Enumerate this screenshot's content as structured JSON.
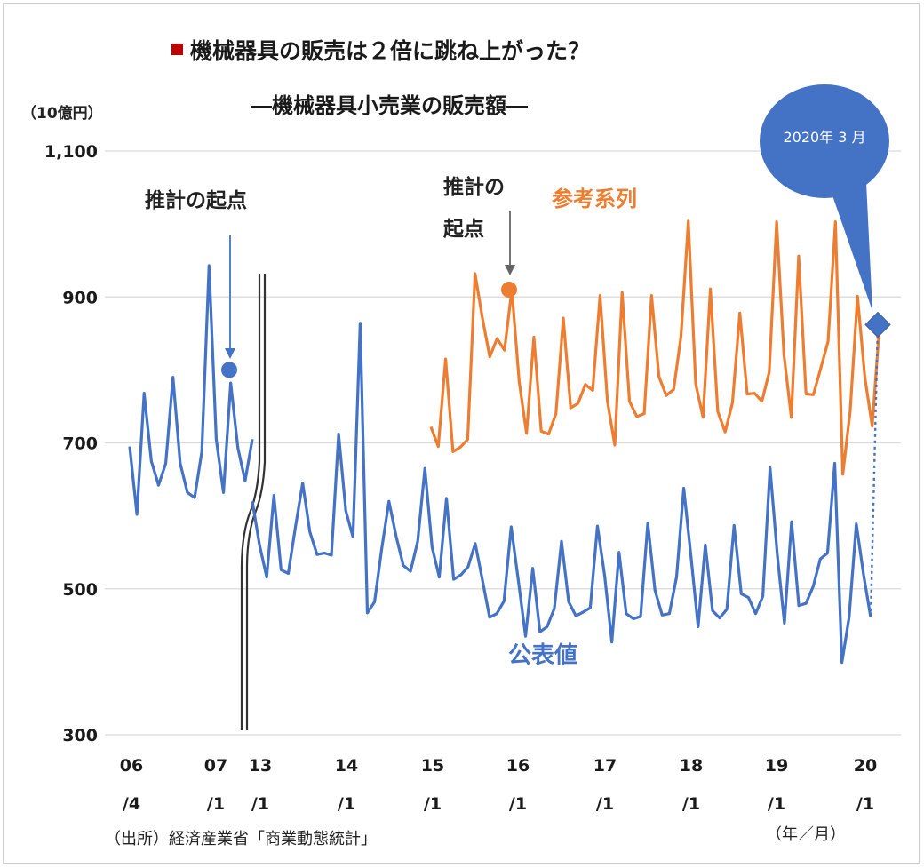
{
  "chart_data": {
    "type": "line",
    "title": "機械器具の販売は２倍に跳ね上がった？",
    "subtitle": "―機械器具小売業の販売額―",
    "ylabel": "（10億円）",
    "ylim": [
      300,
      1100
    ],
    "yticks": [
      300,
      500,
      700,
      900,
      1100
    ],
    "ytick_labels": [
      "300",
      "500",
      "700",
      "900",
      "1,100"
    ],
    "xtick_labels": [
      {
        "top": "06",
        "bottom": "/4"
      },
      {
        "top": "07",
        "bottom": "/1"
      },
      {
        "top": "13",
        "bottom": "/1"
      },
      {
        "top": "14",
        "bottom": "/1"
      },
      {
        "top": "15",
        "bottom": "/1"
      },
      {
        "top": "16",
        "bottom": "/1"
      },
      {
        "top": "17",
        "bottom": "/1"
      },
      {
        "top": "18",
        "bottom": "/1"
      },
      {
        "top": "19",
        "bottom": "/1"
      },
      {
        "top": "20",
        "bottom": "/1"
      }
    ],
    "xunit": "（年／月）",
    "grid": true,
    "series": [
      {
        "name": "公表値",
        "color": "#4472C4",
        "segment_2006_2007": [
          695,
          602,
          768,
          675,
          642,
          672,
          790,
          672,
          632,
          625,
          688,
          943,
          705,
          632,
          782,
          693,
          648,
          705
        ],
        "segment_2012_2020": [
          620,
          560,
          516,
          628,
          526,
          521,
          585,
          645,
          578,
          547,
          549,
          546,
          712,
          607,
          571,
          864,
          467,
          482,
          555,
          620,
          572,
          532,
          524,
          565,
          665,
          557,
          516,
          624,
          513,
          519,
          530,
          562,
          512,
          461,
          466,
          483,
          585,
          511,
          435,
          528,
          441,
          448,
          473,
          565,
          482,
          463,
          468,
          474,
          586,
          518,
          427,
          550,
          466,
          459,
          462,
          590,
          498,
          464,
          466,
          516,
          638,
          545,
          448,
          560,
          470,
          460,
          472,
          587,
          493,
          488,
          466,
          490,
          666,
          548,
          453,
          592,
          477,
          480,
          503,
          541,
          549,
          672,
          399,
          461,
          589,
          520,
          461
        ],
        "fontcolor_label": "#4472C4"
      },
      {
        "name": "参考系列",
        "color": "#ED7D31",
        "values": [
          722,
          695,
          815,
          688,
          694,
          705,
          932,
          871,
          818,
          843,
          827,
          910,
          784,
          713,
          845,
          716,
          712,
          740,
          871,
          748,
          754,
          780,
          772,
          902,
          757,
          697,
          906,
          757,
          736,
          740,
          902,
          791,
          765,
          773,
          846,
          1004,
          781,
          735,
          911,
          743,
          715,
          755,
          878,
          767,
          768,
          757,
          797,
          1003,
          821,
          735,
          956,
          767,
          766,
          802,
          839,
          1003,
          657,
          743,
          901,
          790,
          723,
          862
        ],
        "fontcolor_label": "#ED7D31"
      }
    ],
    "annotations": {
      "start_blue": "推計の起点",
      "start_orange_line1": "推計の",
      "start_orange_line2": "起点",
      "callout": "2020年 3 月",
      "start_blue_value": 800,
      "start_orange_value": 910,
      "callout_value": 862
    },
    "source": "（出所）経済産業省「商業動態統計」"
  }
}
